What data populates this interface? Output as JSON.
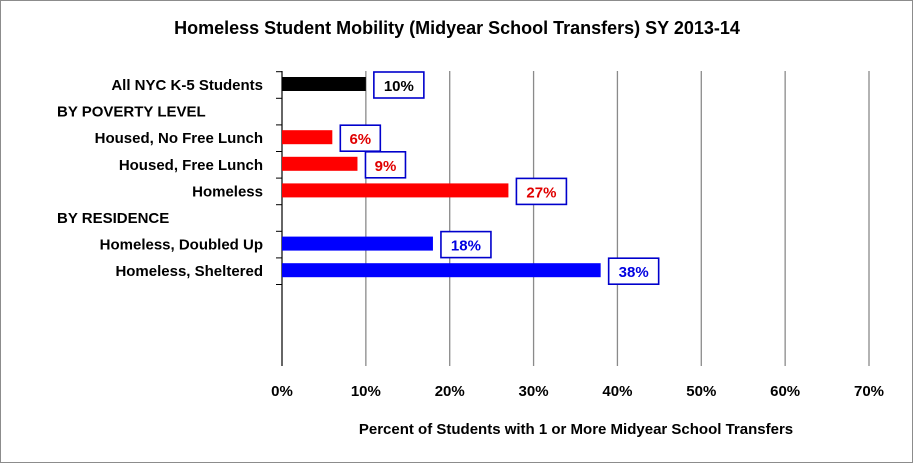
{
  "chart_data": {
    "type": "bar",
    "orientation": "horizontal",
    "title": "Homeless Student Mobility (Midyear School Transfers) SY 2013-14",
    "xlabel": "Percent of Students with 1 or More Midyear School Transfers",
    "ylabel": "",
    "xlim": [
      0,
      70
    ],
    "x_ticks": [
      "0%",
      "10%",
      "20%",
      "30%",
      "40%",
      "50%",
      "60%",
      "70%"
    ],
    "grid": true,
    "rows": [
      {
        "label": "All NYC K-5 Students",
        "value": 10,
        "data_label": "10%",
        "color": "#000000",
        "label_color": "#000000"
      },
      {
        "label": "BY POVERTY LEVEL",
        "value": null
      },
      {
        "label": "Housed, No Free Lunch",
        "value": 6,
        "data_label": "6%",
        "color": "#ff0000",
        "label_color": "#e00000"
      },
      {
        "label": "Housed, Free Lunch",
        "value": 9,
        "data_label": "9%",
        "color": "#ff0000",
        "label_color": "#e00000"
      },
      {
        "label": "Homeless",
        "value": 27,
        "data_label": "27%",
        "color": "#ff0000",
        "label_color": "#e00000"
      },
      {
        "label": "BY RESIDENCE",
        "value": null
      },
      {
        "label": "Homeless, Doubled Up",
        "value": 18,
        "data_label": "18%",
        "color": "#0000ff",
        "label_color": "#0000e0"
      },
      {
        "label": "Homeless, Sheltered",
        "value": 38,
        "data_label": "38%",
        "color": "#0000ff",
        "label_color": "#0000e0"
      }
    ],
    "label_box_color": "#0000cc"
  }
}
